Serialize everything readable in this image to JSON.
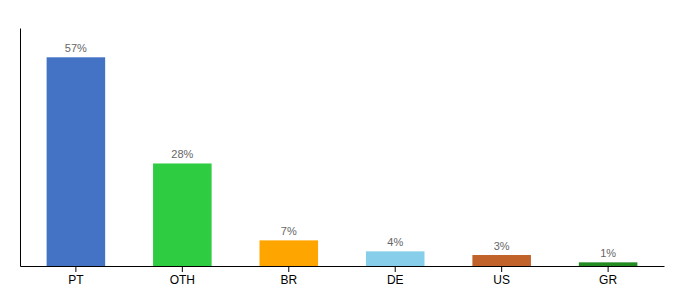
{
  "chart_data": {
    "type": "bar",
    "categories": [
      "PT",
      "OTH",
      "BR",
      "DE",
      "US",
      "GR"
    ],
    "values": [
      57,
      28,
      7,
      4,
      3,
      1
    ],
    "value_labels": [
      "57%",
      "28%",
      "7%",
      "4%",
      "3%",
      "1%"
    ],
    "colors": [
      "#4472C4",
      "#2ECC40",
      "#FFA500",
      "#87CEEB",
      "#C0622A",
      "#228B22"
    ],
    "ylim": [
      0,
      65
    ],
    "grid": false,
    "data_labels": true,
    "tick_labels": "x"
  }
}
